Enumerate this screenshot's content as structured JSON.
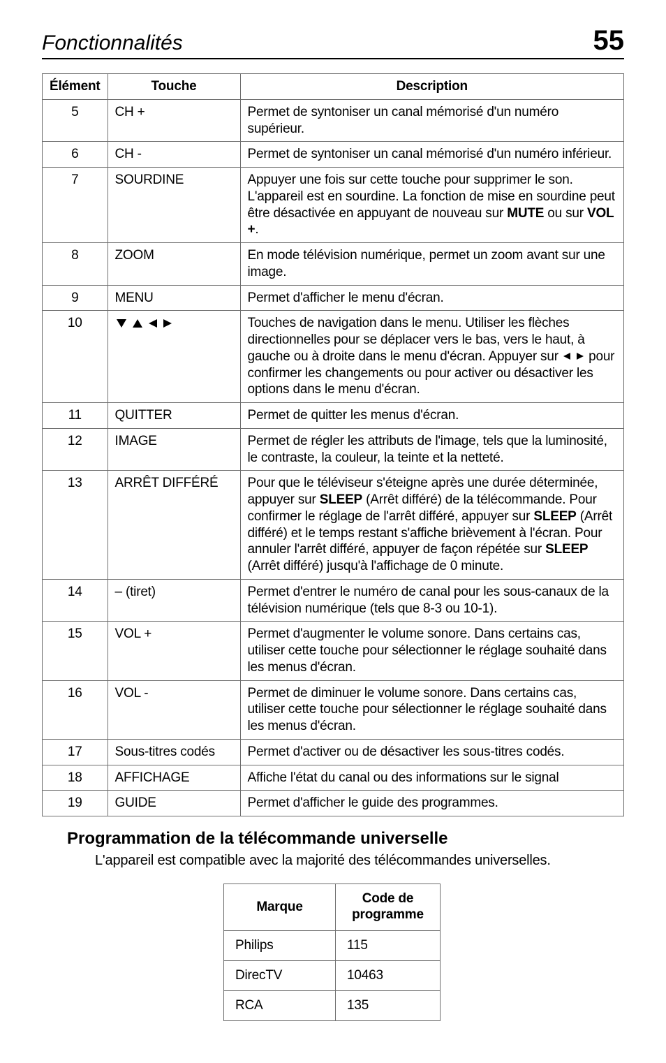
{
  "header": {
    "section_title": "Fonctionnalités",
    "page_number": "55"
  },
  "main_table": {
    "headers": {
      "element": "Élément",
      "touche": "Touche",
      "description": "Description"
    },
    "rows": [
      {
        "elem": "5",
        "touche": "CH +",
        "desc_html": "Permet de syntoniser un canal mémorisé d'un numéro supérieur."
      },
      {
        "elem": "6",
        "touche": "CH -",
        "desc_html": "Permet de syntoniser un canal mémorisé d'un numéro inférieur."
      },
      {
        "elem": "7",
        "touche": "SOURDINE",
        "desc_html": "Appuyer une fois sur cette touche pour supprimer le son. L'appareil est en sourdine. La fonction de mise en sourdine peut être désactivée en appuyant de nouveau sur <span class=\"b\">MUTE</span> ou sur <span class=\"b\">VOL +</span>."
      },
      {
        "elem": "8",
        "touche": "ZOOM",
        "desc_html": "En mode télévision numérique, permet un zoom avant sur une image."
      },
      {
        "elem": "9",
        "touche": "MENU",
        "desc_html": "Permet d'afficher le menu d'écran."
      },
      {
        "elem": "10",
        "touche": "__NAV_ICONS__",
        "desc_html": "Touches de navigation dans le menu.  Utiliser les flèches directionnelles pour se déplacer vers le bas, vers le haut, à gauche ou à droite dans le menu d'écran. Appuyer sur <svg width=\"14\" height=\"12\" viewBox=\"0 0 14 12\"><polygon points=\"12,1 12,11 2,6\" fill=\"#000\"/></svg> <svg width=\"14\" height=\"12\" viewBox=\"0 0 14 12\"><polygon points=\"2,1 2,11 12,6\" fill=\"#000\"/></svg> pour confirmer les changements ou pour activer ou désactiver les options dans le menu d'écran."
      },
      {
        "elem": "11",
        "touche": "QUITTER",
        "desc_html": "Permet de quitter les menus d'écran."
      },
      {
        "elem": "12",
        "touche": "IMAGE",
        "desc_html": "Permet de régler les attributs de l'image, tels que la luminosité, le contraste, la couleur, la teinte et la netteté."
      },
      {
        "elem": "13",
        "touche": "ARRÊT DIFFÉRÉ",
        "desc_html": "Pour que le téléviseur s'éteigne après une durée déterminée, appuyer sur <span class=\"b\">SLEEP</span> (Arrêt différé) de la télécommande. Pour confirmer le réglage de l'arrêt différé, appuyer sur <span class=\"b\">SLEEP</span> (Arrêt différé) et le temps restant s'affiche brièvement à l'écran. Pour annuler l'arrêt différé, appuyer de façon répétée sur <span class=\"b\">SLEEP</span> (Arrêt différé) jusqu'à l'affichage de 0 minute."
      },
      {
        "elem": "14",
        "touche": "– (tiret)",
        "desc_html": "Permet d'entrer le numéro de canal pour les sous-canaux de la télévision numérique (tels que 8-3 ou 10-1)."
      },
      {
        "elem": "15",
        "touche": "VOL +",
        "desc_html": "Permet d'augmenter le volume sonore. Dans certains cas, utiliser cette touche pour sélectionner le réglage souhaité dans les menus d'écran."
      },
      {
        "elem": "16",
        "touche": "VOL -",
        "desc_html": "Permet de diminuer le volume sonore. Dans certains cas, utiliser cette touche pour sélectionner le réglage souhaité dans les menus d'écran."
      },
      {
        "elem": "17",
        "touche": "Sous-titres codés",
        "desc_html": "Permet d'activer ou de désactiver les sous-titres codés."
      },
      {
        "elem": "18",
        "touche": "AFFICHAGE",
        "desc_html": "Affiche l'état du canal ou des informations sur le signal"
      },
      {
        "elem": "19",
        "touche": "GUIDE",
        "desc_html": "Permet d'afficher le guide des programmes."
      }
    ]
  },
  "sub": {
    "heading": "Programmation de la télécommande universelle",
    "text": "L'appareil est compatible avec la majorité des télécommandes universelles."
  },
  "codes_table": {
    "headers": {
      "marque": "Marque",
      "code": "Code de programme"
    },
    "rows": [
      {
        "marque": "Philips",
        "code": "115"
      },
      {
        "marque": "DirecTV",
        "code": "10463"
      },
      {
        "marque": "RCA",
        "code": "135"
      }
    ]
  },
  "nav_icons_svg": "<svg width=\"18\" height=\"16\" viewBox=\"0 0 18 16\"><polygon points=\"2,2 16,2 9,14\" fill=\"#000\"/></svg> <svg width=\"18\" height=\"16\" viewBox=\"0 0 18 16\"><polygon points=\"2,14 16,14 9,2\" fill=\"#000\"/></svg> <svg width=\"16\" height=\"16\" viewBox=\"0 0 16 16\"><polygon points=\"14,2 14,14 2,8\" fill=\"#000\"/></svg> <svg width=\"16\" height=\"16\" viewBox=\"0 0 16 16\"><polygon points=\"2,2 2,14 14,8\" fill=\"#000\"/></svg>"
}
